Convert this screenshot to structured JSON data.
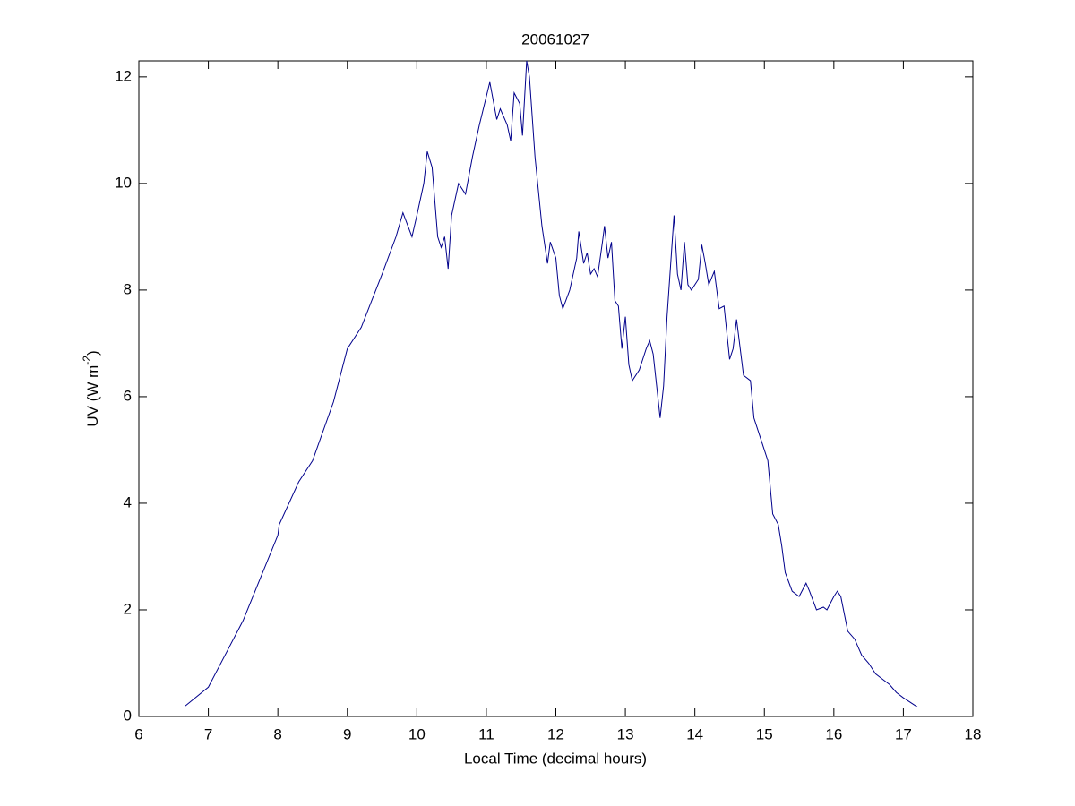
{
  "chart_data": {
    "type": "line",
    "title": "20061027",
    "x_label": "Local Time (decimal hours)",
    "y_label": {
      "text": "UV (W m",
      "superscript": "-2",
      "suffix": ")"
    },
    "xlim": [
      6,
      18
    ],
    "xticks": [
      6,
      7,
      8,
      9,
      10,
      11,
      12,
      13,
      14,
      15,
      16,
      17,
      18
    ],
    "ylim": [
      0,
      12.3
    ],
    "yticks": [
      0,
      2,
      4,
      6,
      8,
      10,
      12
    ],
    "grid": false,
    "series": [
      {
        "color": "#00008b",
        "x": [
          6.67,
          7.0,
          7.5,
          8.0,
          8.02,
          8.3,
          8.5,
          8.8,
          9.0,
          9.2,
          9.5,
          9.7,
          9.8,
          9.93,
          10.0,
          10.1,
          10.15,
          10.22,
          10.3,
          10.35,
          10.4,
          10.45,
          10.5,
          10.6,
          10.7,
          10.8,
          10.9,
          11.05,
          11.15,
          11.2,
          11.3,
          11.35,
          11.4,
          11.48,
          11.52,
          11.58,
          11.62,
          11.7,
          11.8,
          11.88,
          11.92,
          12.0,
          12.05,
          12.1,
          12.2,
          12.3,
          12.33,
          12.4,
          12.45,
          12.5,
          12.55,
          12.6,
          12.67,
          12.7,
          12.75,
          12.8,
          12.85,
          12.9,
          12.95,
          13.0,
          13.05,
          13.1,
          13.2,
          13.3,
          13.35,
          13.4,
          13.5,
          13.55,
          13.6,
          13.7,
          13.75,
          13.8,
          13.85,
          13.9,
          13.95,
          14.05,
          14.1,
          14.15,
          14.2,
          14.28,
          14.35,
          14.42,
          14.5,
          14.55,
          14.6,
          14.7,
          14.8,
          14.85,
          14.95,
          15.05,
          15.12,
          15.2,
          15.25,
          15.3,
          15.4,
          15.5,
          15.6,
          15.65,
          15.75,
          15.85,
          15.9,
          16.0,
          16.05,
          16.1,
          16.2,
          16.3,
          16.4,
          16.5,
          16.6,
          16.7,
          16.8,
          16.9,
          17.0,
          17.2
        ],
        "values": [
          0.2,
          0.55,
          1.8,
          3.4,
          3.6,
          4.4,
          4.8,
          5.9,
          6.9,
          7.3,
          8.3,
          9.0,
          9.45,
          9.0,
          9.4,
          10.0,
          10.6,
          10.3,
          9.0,
          8.8,
          9.0,
          8.4,
          9.4,
          10.0,
          9.8,
          10.5,
          11.1,
          11.9,
          11.2,
          11.4,
          11.1,
          10.8,
          11.7,
          11.5,
          10.9,
          12.3,
          12.0,
          10.5,
          9.2,
          8.5,
          8.9,
          8.6,
          7.9,
          7.65,
          8.0,
          8.6,
          9.1,
          8.5,
          8.7,
          8.3,
          8.4,
          8.25,
          8.9,
          9.2,
          8.6,
          8.9,
          7.8,
          7.7,
          6.9,
          7.5,
          6.6,
          6.3,
          6.5,
          6.9,
          7.05,
          6.8,
          5.6,
          6.2,
          7.5,
          9.4,
          8.3,
          8.0,
          8.9,
          8.1,
          8.0,
          8.2,
          8.85,
          8.5,
          8.1,
          8.35,
          7.65,
          7.7,
          6.7,
          6.9,
          7.45,
          6.4,
          6.3,
          5.6,
          5.2,
          4.8,
          3.8,
          3.6,
          3.2,
          2.7,
          2.35,
          2.25,
          2.5,
          2.35,
          2.0,
          2.05,
          2.0,
          2.25,
          2.35,
          2.25,
          1.6,
          1.45,
          1.15,
          1.0,
          0.8,
          0.7,
          0.6,
          0.45,
          0.35,
          0.18
        ]
      }
    ]
  }
}
